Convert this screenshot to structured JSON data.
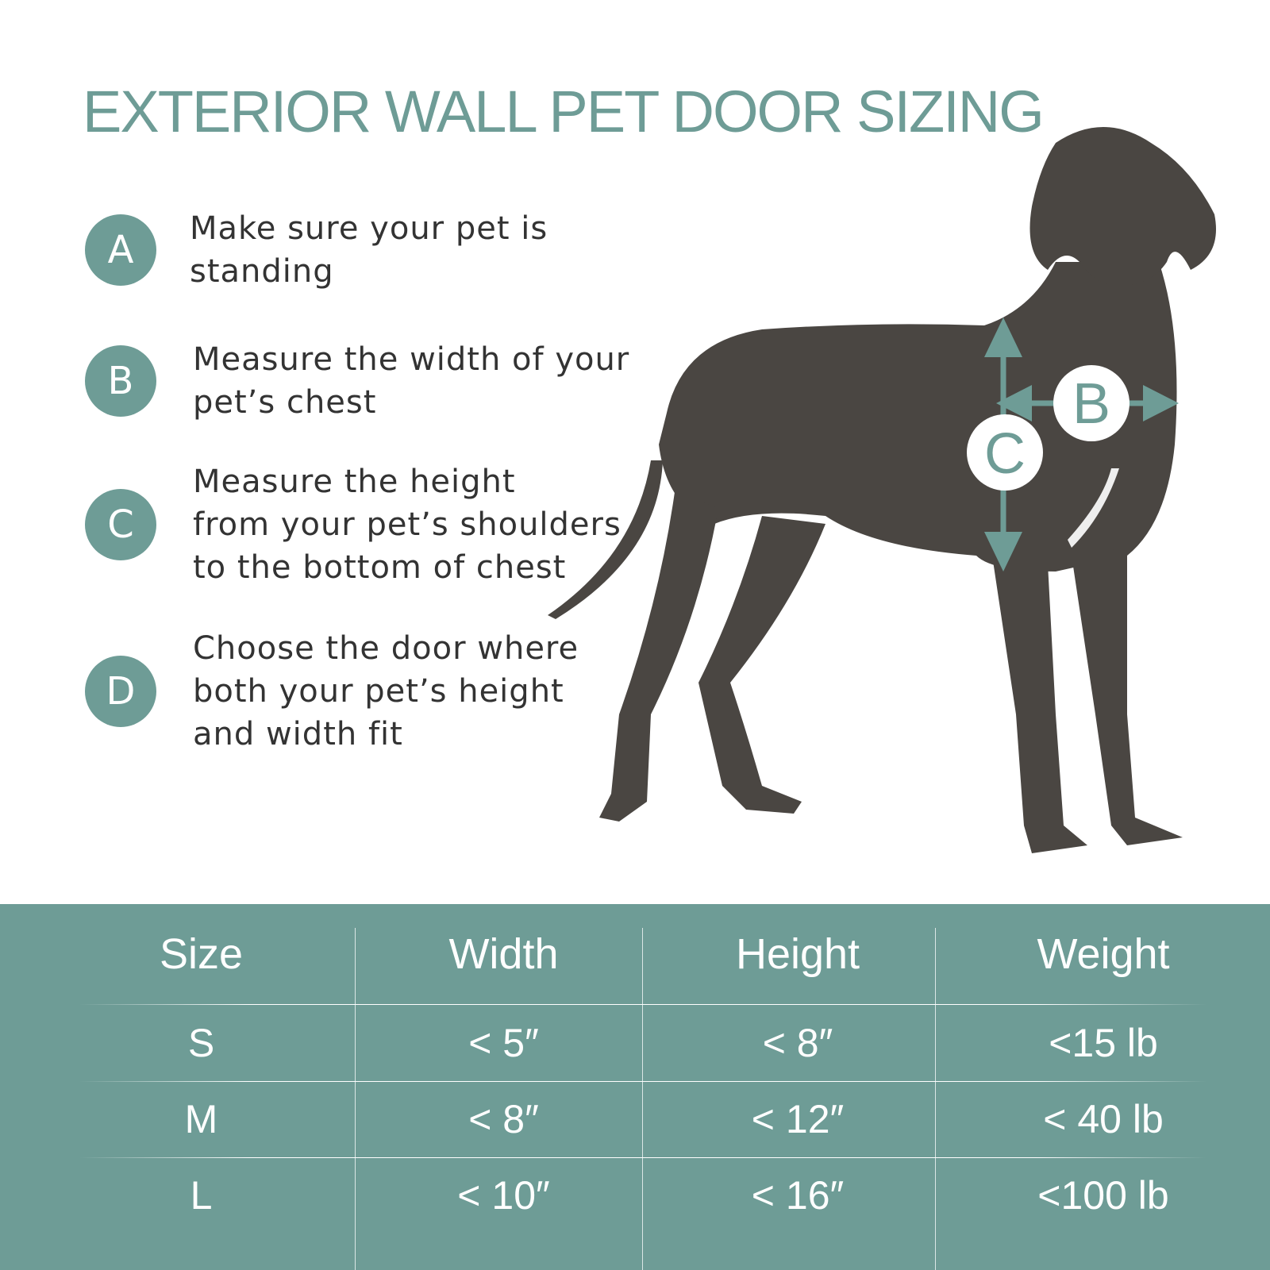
{
  "title": "EXTERIOR WALL PET DOOR SIZING",
  "steps": [
    {
      "letter": "A",
      "text": "Make sure your pet is\nstanding"
    },
    {
      "letter": "B",
      "text": "Measure the width of your\npet’s chest"
    },
    {
      "letter": "C",
      "text": "Measure the height\nfrom your pet’s shoulders\nto the bottom of chest"
    },
    {
      "letter": "D",
      "text": "Choose the door where\nboth your pet’s height\nand width fit"
    }
  ],
  "dog_markers": {
    "width": "B",
    "height": "C"
  },
  "table": {
    "headers": [
      "Size",
      "Width",
      "Height",
      "Weight"
    ],
    "rows": [
      [
        "S",
        "< 5″",
        "< 8″",
        "<15 lb"
      ],
      [
        "M",
        "< 8″",
        "< 12″",
        "< 40 lb"
      ],
      [
        "L",
        "< 10″",
        "< 16″",
        "<100 lb"
      ]
    ]
  },
  "colors": {
    "accent": "#6e9c96",
    "text": "#333333",
    "dog": "#4a4642"
  }
}
